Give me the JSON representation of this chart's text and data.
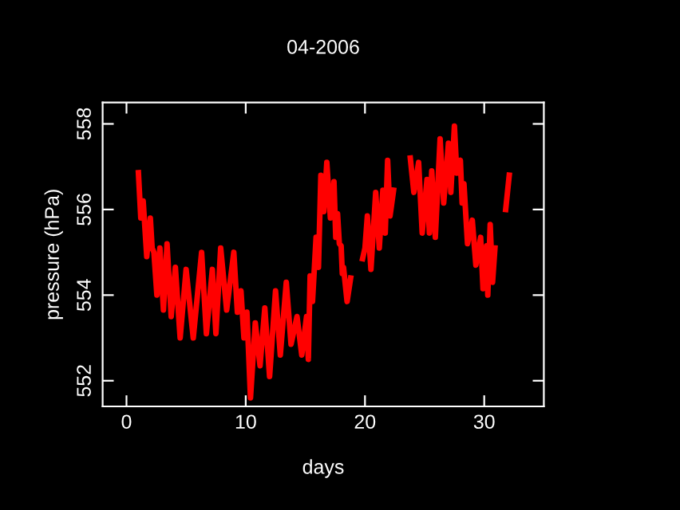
{
  "chart_data": {
    "type": "line",
    "title": "04-2006",
    "xlabel": "days",
    "ylabel": "pressure (hPa)",
    "xlim": [
      -2,
      35
    ],
    "ylim": [
      551.4,
      558.5
    ],
    "xticks": [
      0,
      10,
      20,
      30
    ],
    "yticks": [
      552,
      554,
      556,
      558
    ],
    "grid": false,
    "marker": "none",
    "line_style": "solid",
    "series": [
      {
        "color": "#ff0000",
        "x": [
          1.0,
          1.2,
          1.4,
          1.7,
          2.0,
          2.15,
          2.3,
          2.55,
          2.8,
          3.1,
          3.4,
          3.75,
          4.1,
          4.5,
          5.0,
          5.6,
          6.3,
          6.7,
          7.2,
          7.5,
          7.9,
          8.4,
          9.0,
          9.3,
          9.6,
          9.85,
          10.1,
          10.4,
          10.8,
          11.2,
          11.6,
          12.0,
          12.5,
          12.9,
          13.4,
          13.8,
          14.3,
          14.7,
          15.1,
          15.25,
          15.4,
          15.6,
          15.9,
          16.1,
          16.3,
          16.55,
          16.8,
          17.1,
          17.4,
          17.55,
          17.7,
          17.85,
          18.0,
          18.1,
          18.2,
          18.5,
          18.8,
          19.3,
          19.8,
          20.0,
          20.2,
          20.5,
          20.9,
          21.2,
          21.5,
          21.7,
          21.9,
          22.1,
          22.4,
          23.1,
          23.8,
          24.1,
          24.5,
          24.8,
          25.2,
          25.4,
          25.6,
          25.9,
          26.3,
          26.6,
          27.0,
          27.2,
          27.5,
          27.7,
          28.0,
          28.15,
          28.3,
          28.6,
          29.0,
          29.3,
          29.7,
          29.9,
          30.2,
          30.3,
          30.5,
          30.7,
          30.9,
          31.3,
          31.8,
          32.1
        ],
        "values": [
          556.86,
          555.8,
          556.2,
          554.9,
          555.8,
          555.1,
          555.0,
          554.0,
          555.1,
          553.65,
          555.2,
          553.5,
          554.65,
          553.0,
          554.6,
          553.0,
          555.0,
          553.1,
          554.6,
          553.1,
          555.1,
          553.65,
          555.0,
          553.6,
          554.1,
          553.0,
          553.6,
          551.6,
          553.35,
          552.35,
          553.7,
          552.1,
          554.1,
          552.6,
          554.3,
          552.85,
          553.5,
          552.6,
          553.5,
          552.5,
          554.45,
          553.85,
          555.35,
          554.65,
          556.8,
          555.95,
          557.1,
          555.8,
          556.65,
          555.35,
          555.9,
          555.2,
          555.15,
          554.5,
          554.65,
          553.85,
          554.4,
          null,
          554.85,
          555.1,
          555.85,
          554.6,
          556.4,
          555.1,
          556.45,
          555.45,
          557.15,
          555.85,
          556.45,
          null,
          557.2,
          556.4,
          557.1,
          555.45,
          556.7,
          555.45,
          556.9,
          555.35,
          557.65,
          556.15,
          557.55,
          556.4,
          557.95,
          556.85,
          557.15,
          556.15,
          556.6,
          555.2,
          555.75,
          554.7,
          555.35,
          554.15,
          555.15,
          554.0,
          555.65,
          554.3,
          555.1,
          null,
          556.0,
          556.8
        ]
      }
    ]
  }
}
